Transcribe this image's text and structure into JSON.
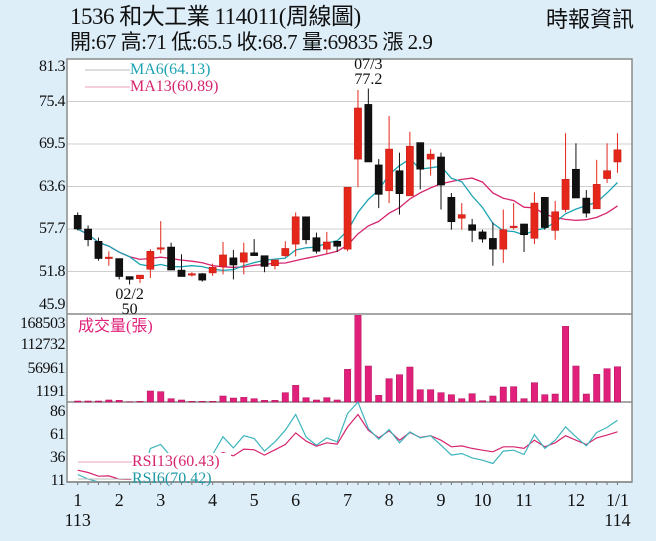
{
  "header": {
    "title": "1536  和大工業 114011(周線圖)",
    "quote": "開:67 高:71 低:65.5 收:68.7 量:69835 漲 2.9",
    "source": "時報資訊"
  },
  "colors": {
    "up": "#e5261b",
    "down": "#111111",
    "ma6": "#1ba3b3",
    "ma13": "#d6246e",
    "volume": "#e0207a",
    "rsi6": "#3db5bd",
    "rsi13": "#d6246e",
    "grid": "#cfcfcf"
  },
  "chart_data": [
    {
      "type": "candlestick",
      "title": "Weekly price",
      "ylim": [
        45.9,
        81.3
      ],
      "yticks": [
        81.3,
        75.4,
        69.5,
        63.6,
        57.7,
        51.8,
        45.9
      ],
      "legend": [
        {
          "name": "MA6",
          "label": "MA6(64.13)"
        },
        {
          "name": "MA13",
          "label": "MA13(60.89)"
        }
      ],
      "annotations": [
        {
          "index": 28,
          "label_top": "07/3",
          "label_bottom": "77.2",
          "position": "above"
        },
        {
          "index": 5,
          "label_top": "02/2",
          "label_bottom": "50",
          "position": "below"
        }
      ],
      "ohlc": [
        [
          59.6,
          60.0,
          57.5,
          57.7
        ],
        [
          57.7,
          58.2,
          55.3,
          56.2
        ],
        [
          56.0,
          56.5,
          53.3,
          53.6
        ],
        [
          53.6,
          54.6,
          52.6,
          53.8
        ],
        [
          53.6,
          53.6,
          50.7,
          51.1
        ],
        [
          51.1,
          51.1,
          50.0,
          50.7
        ],
        [
          50.8,
          51.3,
          50.2,
          51.3
        ],
        [
          52.1,
          54.9,
          50.9,
          54.6
        ],
        [
          55.0,
          58.8,
          54.3,
          55.1
        ],
        [
          55.2,
          55.8,
          52.0,
          52.0
        ],
        [
          52.0,
          54.2,
          51.1,
          51.1
        ],
        [
          51.3,
          51.7,
          51.1,
          51.5
        ],
        [
          51.5,
          51.6,
          50.4,
          50.6
        ],
        [
          51.6,
          52.9,
          51.2,
          52.4
        ],
        [
          52.5,
          55.9,
          51.4,
          54.1
        ],
        [
          53.7,
          54.8,
          50.7,
          52.7
        ],
        [
          53.1,
          55.8,
          51.4,
          54.4
        ],
        [
          54.4,
          56.3,
          54.0,
          54.0
        ],
        [
          54.0,
          54.0,
          51.7,
          52.5
        ],
        [
          52.6,
          53.4,
          52.1,
          53.4
        ],
        [
          54.0,
          56.0,
          53.8,
          55.0
        ],
        [
          55.6,
          60.0,
          53.9,
          59.4
        ],
        [
          59.4,
          59.4,
          55.6,
          56.2
        ],
        [
          56.5,
          57.2,
          54.3,
          54.6
        ],
        [
          54.9,
          57.3,
          54.3,
          55.9
        ],
        [
          56.0,
          56.0,
          54.5,
          55.3
        ],
        [
          54.9,
          63.5,
          54.6,
          63.5
        ],
        [
          67.4,
          77.0,
          63.5,
          74.5
        ],
        [
          75.0,
          77.2,
          67.0,
          67.0
        ],
        [
          66.6,
          67.4,
          60.6,
          62.5
        ],
        [
          63.0,
          73.4,
          61.3,
          68.8
        ],
        [
          65.8,
          68.3,
          59.7,
          62.6
        ],
        [
          62.3,
          71.2,
          62.3,
          69.2
        ],
        [
          69.7,
          69.7,
          63.2,
          66.0
        ],
        [
          67.4,
          68.8,
          65.1,
          68.1
        ],
        [
          67.7,
          68.3,
          60.4,
          63.8
        ],
        [
          62.1,
          62.7,
          57.6,
          58.7
        ],
        [
          59.2,
          61.3,
          57.6,
          59.7
        ],
        [
          58.3,
          59.1,
          55.9,
          57.5
        ],
        [
          57.3,
          57.6,
          55.8,
          56.3
        ],
        [
          56.4,
          58.6,
          52.6,
          54.9
        ],
        [
          54.9,
          60.4,
          53.0,
          57.6
        ],
        [
          58.0,
          61.3,
          57.6,
          58.1
        ],
        [
          58.4,
          58.4,
          54.5,
          56.9
        ],
        [
          56.4,
          62.8,
          55.6,
          61.3
        ],
        [
          62.1,
          62.1,
          57.6,
          57.9
        ],
        [
          57.5,
          61.6,
          56.2,
          60.1
        ],
        [
          60.4,
          71.0,
          60.0,
          64.6
        ],
        [
          66.0,
          69.6,
          62.0,
          62.0
        ],
        [
          62.0,
          63.1,
          59.3,
          59.9
        ],
        [
          60.5,
          67.3,
          60.5,
          63.9
        ],
        [
          64.7,
          69.6,
          64.1,
          65.8
        ],
        [
          67.0,
          71.0,
          65.5,
          68.7
        ]
      ]
    },
    {
      "type": "bar",
      "title": "成交量(張)",
      "yticks": [
        168503,
        112732,
        56961,
        1191
      ],
      "values": [
        2000,
        2000,
        2000,
        4000,
        3300,
        500,
        1300,
        21800,
        20500,
        6600,
        4000,
        1300,
        1300,
        1300,
        11900,
        7900,
        9200,
        6600,
        3300,
        3300,
        18500,
        33000,
        8600,
        4000,
        8600,
        4000,
        64700,
        171600,
        71300,
        13200,
        46200,
        54100,
        69300,
        24400,
        24400,
        18500,
        14500,
        6600,
        16500,
        2600,
        11900,
        29700,
        30400,
        6600,
        38300,
        14500,
        15800,
        149800,
        71300,
        15800,
        54800,
        66000,
        69835
      ]
    },
    {
      "type": "line",
      "title": "RSI",
      "yticks": [
        86,
        61,
        36,
        11
      ],
      "legend": [
        {
          "name": "RSI13",
          "label": "RSI13(60.43)"
        },
        {
          "name": "RSI6",
          "label": "RSI6(70.42)"
        }
      ],
      "series": [
        {
          "name": "RSI6",
          "values": [
            23.9,
            19.9,
            15.8,
            15.8,
            12.2,
            10,
            10,
            46.2,
            49.6,
            39.0,
            28,
            24,
            26,
            41.0,
            56.2,
            46.7,
            57.1,
            54.7,
            43.9,
            51.8,
            61.8,
            75.3,
            56.0,
            49.0,
            55.2,
            51.8,
            76.2,
            85.9,
            63.3,
            54.1,
            62.4,
            51.0,
            60.4,
            55.2,
            57.1,
            49.0,
            40.5,
            41.9,
            38.1,
            36.1,
            33.3,
            43.9,
            44.7,
            41.0,
            58.1,
            46.2,
            53.3,
            64.7,
            56.2,
            48.4,
            59.9,
            64.2,
            70.42
          ]
        },
        {
          "name": "RSI13",
          "values": [
            27.6,
            25.6,
            22.4,
            22.7,
            19.9,
            19.7,
            20.5,
            28,
            30,
            27,
            25,
            24,
            26,
            38,
            42.7,
            39.8,
            45.6,
            45.0,
            40.5,
            45.0,
            49.6,
            59.5,
            52.5,
            48.1,
            51.0,
            49.9,
            64.7,
            75.3,
            61.8,
            55.2,
            61.3,
            53.3,
            59.9,
            55.6,
            57.1,
            53.3,
            47.6,
            48.4,
            46.2,
            44.7,
            43.3,
            47.6,
            47.6,
            46.2,
            53.3,
            47.6,
            51.0,
            57.1,
            53.3,
            49.6,
            55.2,
            57.6,
            60.43
          ]
        }
      ]
    }
  ],
  "xaxis": {
    "labels": [
      {
        "index": 0,
        "text": "1",
        "sub": "113"
      },
      {
        "index": 4,
        "text": "2"
      },
      {
        "index": 8,
        "text": "3"
      },
      {
        "index": 13,
        "text": "4"
      },
      {
        "index": 17,
        "text": "5"
      },
      {
        "index": 21,
        "text": "6"
      },
      {
        "index": 26,
        "text": "7"
      },
      {
        "index": 30,
        "text": "8"
      },
      {
        "index": 35,
        "text": "9"
      },
      {
        "index": 39,
        "text": "10"
      },
      {
        "index": 43,
        "text": "11"
      },
      {
        "index": 48,
        "text": "12"
      },
      {
        "index": 52,
        "text": "1/1",
        "sub": "114"
      }
    ]
  }
}
